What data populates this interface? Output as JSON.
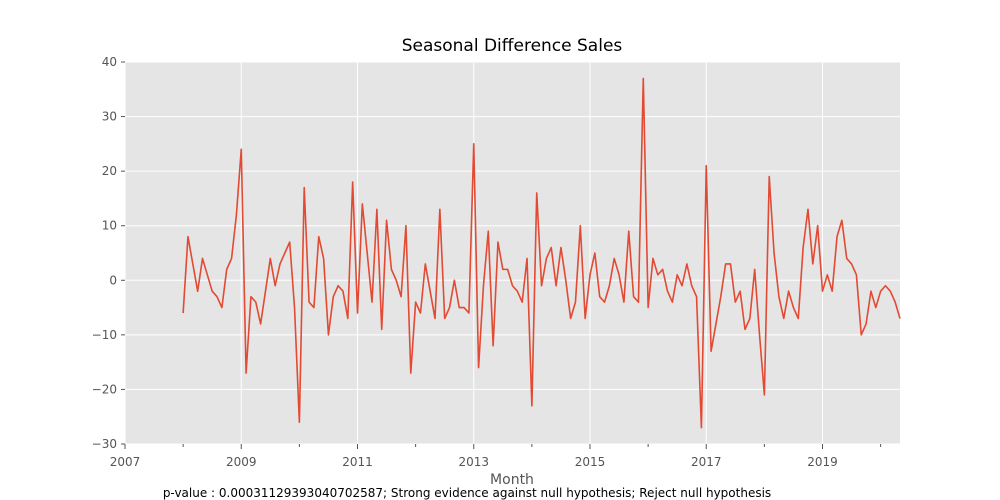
{
  "chart_data": {
    "type": "line",
    "title": "Seasonal Difference Sales",
    "xlabel": "Month",
    "ylabel": "",
    "ylim": [
      -30,
      40
    ],
    "yticks": [
      -30,
      -20,
      -10,
      0,
      10,
      20,
      30,
      40
    ],
    "xlim": [
      "2007-01",
      "2020-05"
    ],
    "xticks": [
      "2007",
      "2009",
      "2011",
      "2013",
      "2015",
      "2017",
      "2019"
    ],
    "grid": true,
    "series": [
      {
        "x": [
          "2008-01",
          "2008-02",
          "2008-03",
          "2008-04",
          "2008-05",
          "2008-06",
          "2008-07",
          "2008-08",
          "2008-09",
          "2008-10",
          "2008-11",
          "2008-12",
          "2009-01",
          "2009-02",
          "2009-03",
          "2009-04",
          "2009-05",
          "2009-06",
          "2009-07",
          "2009-08",
          "2009-09",
          "2009-10",
          "2009-11",
          "2009-12",
          "2010-01",
          "2010-02",
          "2010-03",
          "2010-04",
          "2010-05",
          "2010-06",
          "2010-07",
          "2010-08",
          "2010-09",
          "2010-10",
          "2010-11",
          "2010-12",
          "2011-01",
          "2011-02",
          "2011-03",
          "2011-04",
          "2011-05",
          "2011-06",
          "2011-07",
          "2011-08",
          "2011-09",
          "2011-10",
          "2011-11",
          "2011-12",
          "2012-01",
          "2012-02",
          "2012-03",
          "2012-04",
          "2012-05",
          "2012-06",
          "2012-07",
          "2012-08",
          "2012-09",
          "2012-10",
          "2012-11",
          "2012-12",
          "2013-01",
          "2013-02",
          "2013-03",
          "2013-04",
          "2013-05",
          "2013-06",
          "2013-07",
          "2013-08",
          "2013-09",
          "2013-10",
          "2013-11",
          "2013-12",
          "2014-01",
          "2014-02",
          "2014-03",
          "2014-04",
          "2014-05",
          "2014-06",
          "2014-07",
          "2014-08",
          "2014-09",
          "2014-10",
          "2014-11",
          "2014-12",
          "2015-01",
          "2015-02",
          "2015-03",
          "2015-04",
          "2015-05",
          "2015-06",
          "2015-07",
          "2015-08",
          "2015-09",
          "2015-10",
          "2015-11",
          "2015-12",
          "2016-01",
          "2016-02",
          "2016-03",
          "2016-04",
          "2016-05",
          "2016-06",
          "2016-07",
          "2016-08",
          "2016-09",
          "2016-10",
          "2016-11",
          "2016-12",
          "2017-01",
          "2017-02",
          "2017-03",
          "2017-04",
          "2017-05",
          "2017-06",
          "2017-07",
          "2017-08",
          "2017-09",
          "2017-10",
          "2017-11",
          "2017-12",
          "2018-01",
          "2018-02",
          "2018-03",
          "2018-04",
          "2018-05",
          "2018-06",
          "2018-07",
          "2018-08",
          "2018-09",
          "2018-10",
          "2018-11",
          "2018-12",
          "2019-01",
          "2019-02",
          "2019-03",
          "2019-04",
          "2019-05",
          "2019-06",
          "2019-07",
          "2019-08",
          "2019-09",
          "2019-10",
          "2019-11",
          "2019-12",
          "2020-01",
          "2020-02",
          "2020-03",
          "2020-04",
          "2020-05"
        ],
        "values": [
          -6,
          8,
          3,
          -2,
          4,
          1,
          -2,
          -3,
          -5,
          2,
          4,
          12,
          24,
          -17,
          -3,
          -4,
          -8,
          -2,
          4,
          -1,
          3,
          5,
          7,
          -5,
          -26,
          17,
          -4,
          -5,
          8,
          4,
          -10,
          -3,
          -1,
          -2,
          -7,
          18,
          -6,
          14,
          5,
          -4,
          13,
          -9,
          11,
          2,
          0,
          -3,
          10,
          -17,
          -4,
          -6,
          3,
          -2,
          -7,
          13,
          -7,
          -5,
          0,
          -5,
          -5,
          -6,
          25,
          -16,
          -1,
          9,
          -12,
          7,
          2,
          2,
          -1,
          -2,
          -4,
          4,
          -23,
          16,
          -1,
          4,
          6,
          -1,
          6,
          0,
          -7,
          -4,
          10,
          -7,
          1,
          5,
          -3,
          -4,
          -1,
          4,
          1,
          -4,
          9,
          -3,
          -4,
          37,
          -5,
          4,
          1,
          2,
          -2,
          -4,
          1,
          -1,
          3,
          -1,
          -3,
          -27,
          21,
          -13,
          -8,
          -3,
          3,
          3,
          -4,
          -2,
          -9,
          -7,
          2,
          -10,
          -21,
          19,
          5,
          -3,
          -7,
          -2,
          -5,
          -7,
          6,
          13,
          3,
          10,
          -2,
          1,
          -2,
          8,
          11,
          4,
          3,
          1,
          -10,
          -8,
          -2,
          -5,
          -2,
          -1,
          -2,
          -4,
          -7
        ]
      }
    ],
    "colors": {
      "line": "#e24a33",
      "plot_bg": "#e5e5e5",
      "grid": "#ffffff",
      "tick": "#555555"
    }
  },
  "footnote": "p-value : 0.0003112939304070258 7; Strong evidence against null hypothesis; Reject null hypothesis"
}
